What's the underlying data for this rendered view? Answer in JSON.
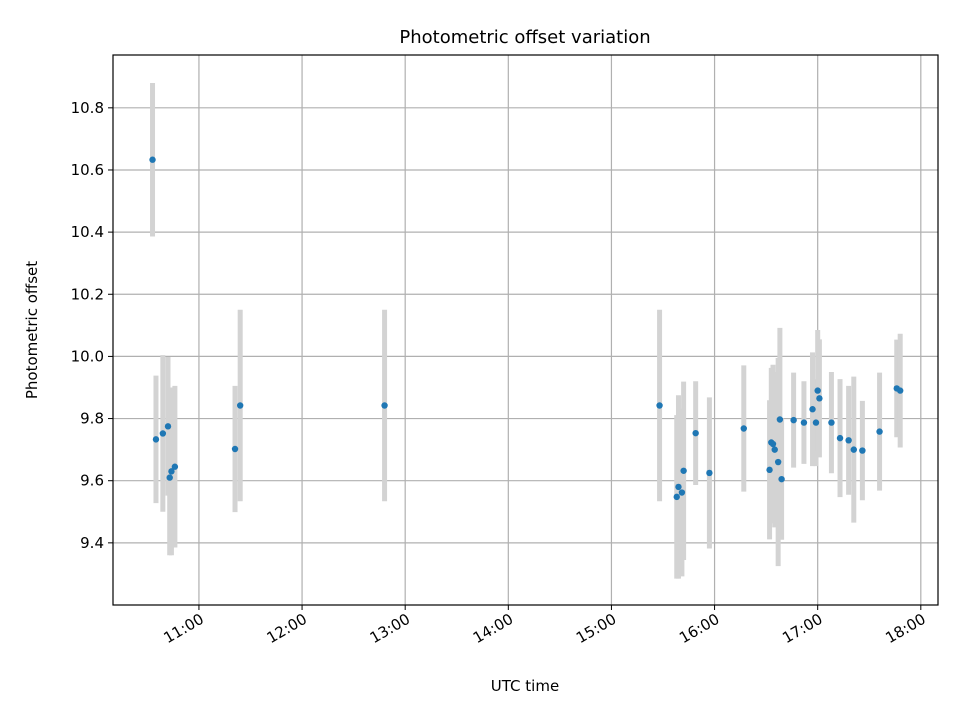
{
  "chart_data": {
    "type": "scatter",
    "title": "Photometric offset variation",
    "xlabel": "UTC time",
    "ylabel": "Photometric offset",
    "xlim": [
      "10:10",
      "18:10"
    ],
    "ylim": [
      9.2,
      10.97
    ],
    "xticks": [
      "11:00",
      "12:00",
      "13:00",
      "14:00",
      "15:00",
      "16:00",
      "17:00",
      "18:00"
    ],
    "yticks": [
      "9.4",
      "9.6",
      "9.8",
      "10.0",
      "10.2",
      "10.4",
      "10.6",
      "10.8"
    ],
    "grid": true,
    "colors": {
      "point": "#1f77b4",
      "errorbar": "#d3d3d3",
      "grid": "#b0b0b0"
    },
    "points": [
      {
        "t": "10:33",
        "y": 10.633,
        "err": 0.247
      },
      {
        "t": "10:35",
        "y": 9.733,
        "err": 0.205
      },
      {
        "t": "10:39",
        "y": 9.752,
        "err": 0.252
      },
      {
        "t": "10:42",
        "y": 9.775,
        "err": 0.223
      },
      {
        "t": "10:43",
        "y": 9.61,
        "err": 0.25
      },
      {
        "t": "10:44",
        "y": 9.63,
        "err": 0.27
      },
      {
        "t": "10:46",
        "y": 9.645,
        "err": 0.26
      },
      {
        "t": "11:21",
        "y": 9.702,
        "err": 0.203
      },
      {
        "t": "11:24",
        "y": 9.842,
        "err": 0.308
      },
      {
        "t": "12:48",
        "y": 9.842,
        "err": 0.308
      },
      {
        "t": "15:28",
        "y": 9.842,
        "err": 0.308
      },
      {
        "t": "15:38",
        "y": 9.548,
        "err": 0.263
      },
      {
        "t": "15:39",
        "y": 9.58,
        "err": 0.295
      },
      {
        "t": "15:41",
        "y": 9.562,
        "err": 0.27
      },
      {
        "t": "15:42",
        "y": 9.632,
        "err": 0.287
      },
      {
        "t": "15:49",
        "y": 9.753,
        "err": 0.167
      },
      {
        "t": "15:57",
        "y": 9.625,
        "err": 0.243
      },
      {
        "t": "16:17",
        "y": 9.768,
        "err": 0.203
      },
      {
        "t": "16:32",
        "y": 9.635,
        "err": 0.224
      },
      {
        "t": "16:33",
        "y": 9.723,
        "err": 0.24
      },
      {
        "t": "16:34",
        "y": 9.718,
        "err": 0.255
      },
      {
        "t": "16:35",
        "y": 9.7,
        "err": 0.25
      },
      {
        "t": "16:37",
        "y": 9.66,
        "err": 0.335
      },
      {
        "t": "16:38",
        "y": 9.797,
        "err": 0.295
      },
      {
        "t": "16:39",
        "y": 9.605,
        "err": 0.195
      },
      {
        "t": "16:46",
        "y": 9.795,
        "err": 0.153
      },
      {
        "t": "16:52",
        "y": 9.787,
        "err": 0.133
      },
      {
        "t": "16:57",
        "y": 9.83,
        "err": 0.183
      },
      {
        "t": "16:59",
        "y": 9.787,
        "err": 0.14
      },
      {
        "t": "17:00",
        "y": 9.89,
        "err": 0.195
      },
      {
        "t": "17:01",
        "y": 9.865,
        "err": 0.19
      },
      {
        "t": "17:08",
        "y": 9.787,
        "err": 0.163
      },
      {
        "t": "17:13",
        "y": 9.737,
        "err": 0.19
      },
      {
        "t": "17:18",
        "y": 9.73,
        "err": 0.175
      },
      {
        "t": "17:21",
        "y": 9.7,
        "err": 0.235
      },
      {
        "t": "17:26",
        "y": 9.697,
        "err": 0.16
      },
      {
        "t": "17:36",
        "y": 9.758,
        "err": 0.19
      },
      {
        "t": "17:46",
        "y": 9.897,
        "err": 0.157
      },
      {
        "t": "17:48",
        "y": 9.89,
        "err": 0.183
      }
    ]
  }
}
